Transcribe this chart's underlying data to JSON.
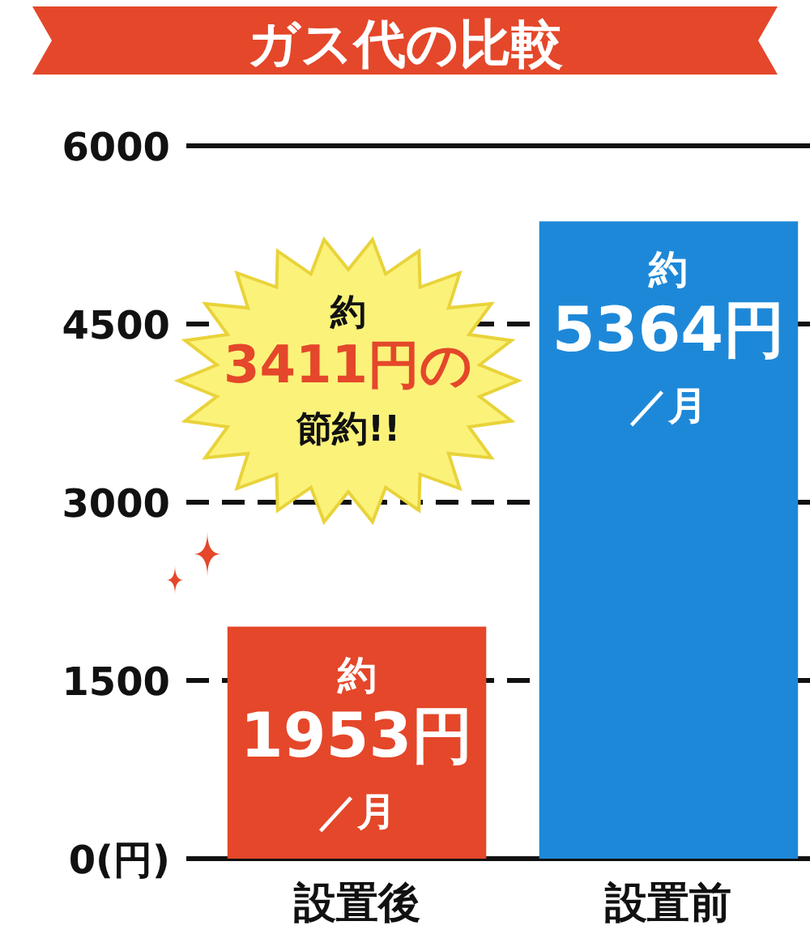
{
  "chart_data": {
    "type": "bar",
    "title": "ガス代の比較",
    "categories": [
      "設置後",
      "設置前"
    ],
    "values": [
      1953,
      5364
    ],
    "colors": [
      "#e4472a",
      "#1e88d8"
    ],
    "value_labels": [
      "約1953円／月",
      "約5364円／月"
    ],
    "ylim": [
      0,
      6000
    ],
    "yticks": [
      {
        "value": 0,
        "label": "0(円)"
      },
      1500,
      3000,
      4500,
      6000
    ],
    "grid": "y",
    "annotations": [
      "約3411円の節約!!"
    ]
  }
}
